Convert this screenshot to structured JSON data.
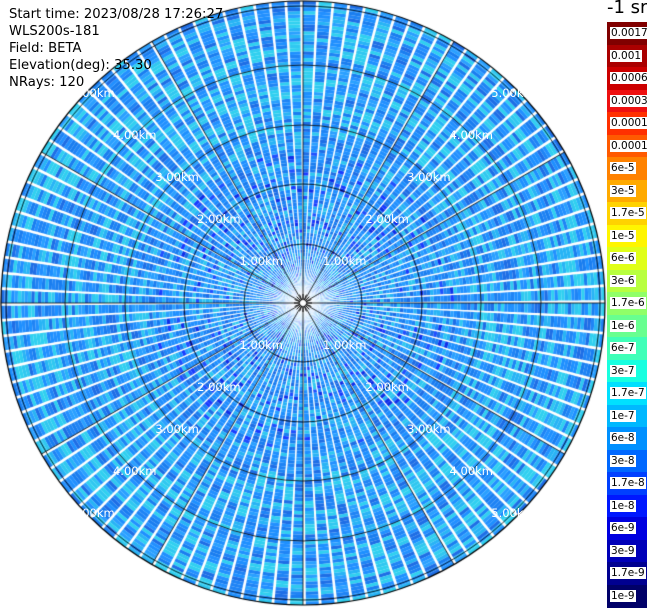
{
  "info": {
    "start_time": "Start time: 2023/08/28 17:26:27",
    "instrument": "WLS200s-181",
    "field": "Field: BETA",
    "elevation": "Elevation(deg): 35.30",
    "nrays": "NRays: 120"
  },
  "colorbar": {
    "unit_label": "-1 sr",
    "labels": [
      "0.0017",
      "0.001",
      "0.0006",
      "0.0003",
      "0.00017",
      "0.0001",
      "6e-5",
      "3e-5",
      "1.7e-5",
      "1e-5",
      "6e-6",
      "3e-6",
      "1.7e-6",
      "1e-6",
      "6e-7",
      "3e-7",
      "1.7e-7",
      "1e-7",
      "6e-8",
      "3e-8",
      "1.7e-8",
      "1e-8",
      "6e-9",
      "3e-9",
      "1.7e-9",
      "1e-9"
    ],
    "colors": [
      "#800000",
      "#aa0000",
      "#cc0000",
      "#ee1010",
      "#ff3000",
      "#ff5a00",
      "#ff8200",
      "#ffaa00",
      "#ffd200",
      "#fff500",
      "#e0ff18",
      "#b8ff40",
      "#90ff68",
      "#68ff90",
      "#40ffb8",
      "#18ffe0",
      "#00e0ff",
      "#00b8ff",
      "#0090ff",
      "#0068ff",
      "#0040ff",
      "#0018ff",
      "#0000e0",
      "#0000b8",
      "#000090",
      "#000068"
    ]
  },
  "range_rings": {
    "labels": [
      "1.00km",
      "2.00km",
      "3.00km",
      "4.00km",
      "5.00km"
    ]
  }
}
